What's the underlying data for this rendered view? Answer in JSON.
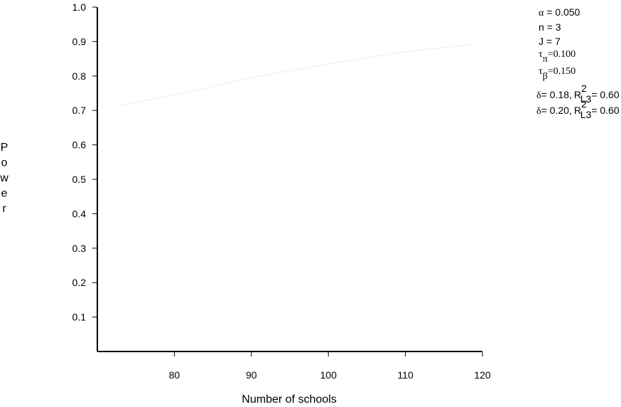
{
  "chart_data": {
    "type": "line",
    "title": "",
    "xlabel": "Number of schools",
    "ylabel": "Power",
    "xlim": [
      70,
      120
    ],
    "ylim": [
      0,
      1.0
    ],
    "x_ticks": [
      80,
      90,
      100,
      110,
      120
    ],
    "y_ticks": [
      0.1,
      0.2,
      0.3,
      0.4,
      0.5,
      0.6,
      0.7,
      0.8,
      0.9,
      1.0
    ],
    "x_tick_labels": [
      "80",
      "90",
      "100",
      "110",
      "120"
    ],
    "y_tick_labels": [
      "0.1",
      "0.2",
      "0.3",
      "0.4",
      "0.5",
      "0.6",
      "0.7",
      "0.8",
      "0.9",
      "1.0"
    ],
    "series": [
      {
        "x": [
          73,
          80,
          90,
          100,
          110,
          119
        ],
        "values": [
          0.715,
          0.745,
          0.795,
          0.835,
          0.87,
          0.893
        ],
        "color": "#f2f2f2"
      }
    ],
    "parameters": {
      "alpha_symbol": "α",
      "alpha_text": " = 0.050",
      "n_text": "n = 3",
      "J_text": "J = 7",
      "tau_symbol": "τ",
      "tau_pi_sub": "π",
      "tau_pi_value": "=0.100",
      "tau_beta_sub": "β",
      "tau_beta_value": "=0.150"
    },
    "legend": [
      {
        "delta_symbol": "δ",
        "delta_text": "= 0.18,",
        "r_text": "R",
        "r_sup": "2",
        "r_sub": "L3",
        "r_value": "= 0.60"
      },
      {
        "delta_symbol": "δ",
        "delta_text": "= 0.20,",
        "r_text": "R",
        "r_sup": "2",
        "r_sub": "L3",
        "r_value": "= 0.60"
      }
    ],
    "grid": false,
    "legend_position": "top-right"
  }
}
